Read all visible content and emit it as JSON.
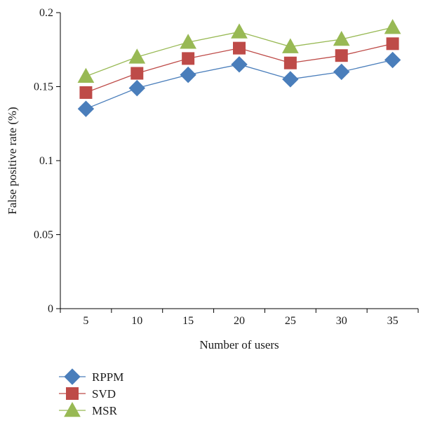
{
  "chart_data": {
    "type": "line",
    "xlabel": "Number of users",
    "ylabel": "False positive rate (%)",
    "categories": [
      "5",
      "10",
      "15",
      "20",
      "25",
      "30",
      "35"
    ],
    "ylim": [
      0,
      0.2
    ],
    "yticks": [
      "0",
      "0.05",
      "0.1",
      "0.15",
      "0.2"
    ],
    "grid": false,
    "legend_position": "bottom-left",
    "series": [
      {
        "name": "RPPM",
        "values": [
          0.135,
          0.149,
          0.158,
          0.165,
          0.155,
          0.16,
          0.168
        ],
        "color": "#4a7ebb",
        "marker": "diamond"
      },
      {
        "name": "SVD",
        "values": [
          0.146,
          0.159,
          0.169,
          0.176,
          0.166,
          0.171,
          0.179
        ],
        "color": "#be4b48",
        "marker": "square"
      },
      {
        "name": "MSR",
        "values": [
          0.157,
          0.17,
          0.18,
          0.187,
          0.177,
          0.182,
          0.19
        ],
        "color": "#98b954",
        "marker": "triangle"
      }
    ]
  }
}
